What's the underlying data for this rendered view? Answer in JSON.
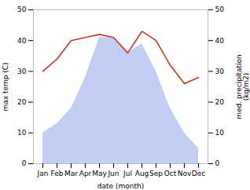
{
  "chart_data": {
    "type": "line",
    "categories": [
      "Jan",
      "Feb",
      "Mar",
      "Apr",
      "May",
      "Jun",
      "Jul",
      "Aug",
      "Sep",
      "Oct",
      "Nov",
      "Dec"
    ],
    "xlabel": "date (month)",
    "ylabel": "max temp (C)",
    "y2label": "med. precipitation\n(kg/m2)",
    "ylim": [
      0,
      50
    ],
    "yticks": [
      0,
      10,
      20,
      30,
      40,
      50
    ],
    "y2lim": [
      0,
      50
    ],
    "y2ticks": [
      0,
      10,
      20,
      30,
      40,
      50
    ],
    "grid": false,
    "series": [
      {
        "type": "area",
        "axis": "y2",
        "color": "#b0bdf0",
        "values": [
          10,
          13,
          18,
          28,
          41,
          41,
          36,
          39,
          30,
          18,
          10,
          5
        ]
      },
      {
        "type": "line",
        "color": "#c0392b",
        "values": [
          30,
          34,
          40,
          41,
          42,
          41,
          36,
          43,
          40,
          32,
          26,
          28
        ]
      }
    ]
  }
}
